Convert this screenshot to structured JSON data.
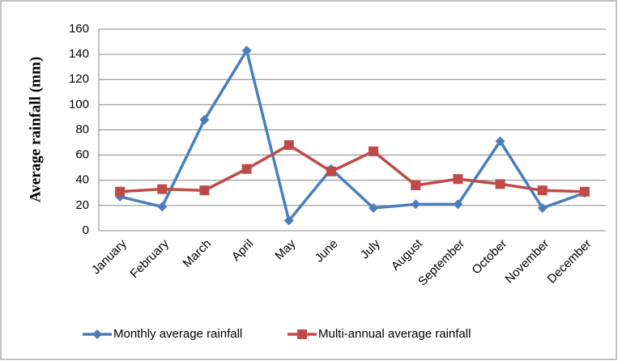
{
  "chart_data": {
    "type": "line",
    "y_label": "Average rainfall (mm)",
    "categories": [
      "January",
      "February",
      "March",
      "April",
      "May",
      "June",
      "July",
      "August",
      "September",
      "October",
      "November",
      "December"
    ],
    "series": [
      {
        "name": "Monthly average rainfall",
        "color": "#4a7ebb",
        "marker": "diamond",
        "values": [
          27,
          19,
          88,
          143,
          8,
          49,
          18,
          21,
          21,
          71,
          18,
          30
        ]
      },
      {
        "name": "Multi-annual average rainfall",
        "color": "#be4b48",
        "marker": "square",
        "values": [
          31,
          33,
          32,
          49,
          68,
          47,
          63,
          36,
          41,
          37,
          32,
          31
        ]
      }
    ],
    "ylim": [
      0,
      160
    ],
    "yticks": [
      0,
      20,
      40,
      60,
      80,
      100,
      120,
      140,
      160
    ],
    "grid": true,
    "legend": "bottom"
  }
}
